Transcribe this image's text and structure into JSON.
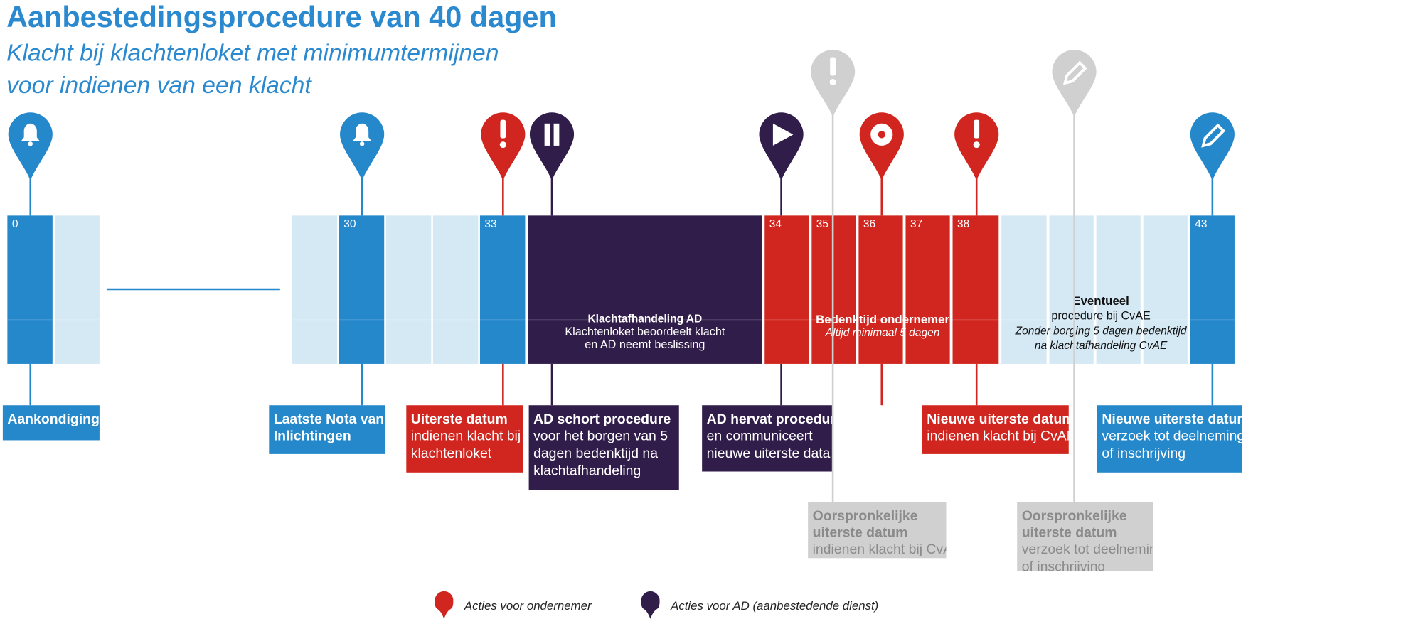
{
  "header": {
    "title": "Aanbestedingsprocedure van 40 dagen",
    "subtitle": [
      "Klacht bij klachtenloket met minimumtermijnen",
      "voor indienen van een klacht"
    ]
  },
  "timeline": {
    "days": [
      0,
      30,
      33,
      34,
      35,
      36,
      37,
      38,
      43
    ],
    "blocks": [
      {
        "title": "Klachtafhandeling AD",
        "lines": [
          "Klachtenloket beoordeelt klacht",
          "en AD neemt beslissing"
        ]
      },
      {
        "title": "Bedenktijd ondernemer",
        "notes": [
          "Altijd minimaal 5 dagen"
        ]
      },
      {
        "title": "Eventueel",
        "lines": [
          "procedure bij CvAE"
        ],
        "notes": [
          "Zonder borging 5 dagen bedenktijd",
          "na klachtafhandeling CvAE"
        ]
      }
    ]
  },
  "labels": [
    {
      "title": [
        "Aankondiging"
      ]
    },
    {
      "title": [
        "Laatste Nota van",
        "Inlichtingen"
      ]
    },
    {
      "title": [
        "Uiterste datum"
      ],
      "text": [
        "indienen klacht bij",
        "klachtenloket"
      ]
    },
    {
      "title": [
        "AD schort procedure"
      ],
      "text": [
        "voor het borgen van 5",
        "dagen bedenktijd na",
        "klachtafhandeling"
      ]
    },
    {
      "title": [
        "AD hervat procedure"
      ],
      "text": [
        "en communiceert",
        "nieuwe uiterste data"
      ]
    },
    {
      "title": [
        "Nieuwe uiterste datum"
      ],
      "text": [
        "indienen klacht bij CvAE"
      ]
    },
    {
      "title": [
        "Nieuwe uiterste datum"
      ],
      "text": [
        "verzoek tot deelneming",
        "of inschrijving"
      ]
    },
    {
      "title": [
        "Oorspronkelijke",
        "uiterste datum"
      ],
      "text": [
        "indienen klacht bij CvAE"
      ]
    },
    {
      "title": [
        "Oorspronkelijke",
        "uiterste datum"
      ],
      "text": [
        "verzoek tot deelneming",
        "of inschrijving"
      ]
    }
  ],
  "legend": [
    "Acties voor ondernemer",
    "Acties voor AD (aanbestedende dienst)"
  ]
}
